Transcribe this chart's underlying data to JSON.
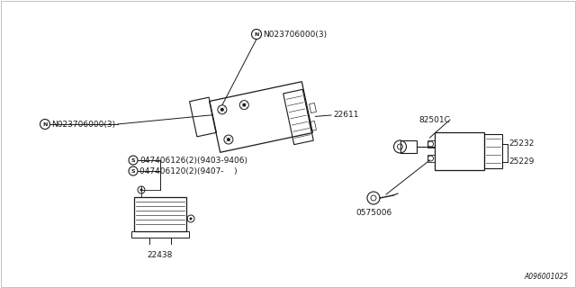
{
  "background_color": "#ffffff",
  "line_color": "#1a1a1a",
  "text_color": "#1a1a1a",
  "part_number_bottom_right": "A096001025",
  "labels": {
    "n_top": "N023706000(3)",
    "n_left": "N023706000(3)",
    "part_22611": "22611",
    "part_82501c": "82501C",
    "part_25232": "25232",
    "part_25229": "25229",
    "part_0575006": "0575006",
    "part_22438": "22438",
    "s_line1": "047406126(2)(9403-9406)",
    "s_line2": "047406120(2)(9407-    )"
  },
  "fig_width": 6.4,
  "fig_height": 3.2,
  "dpi": 100
}
